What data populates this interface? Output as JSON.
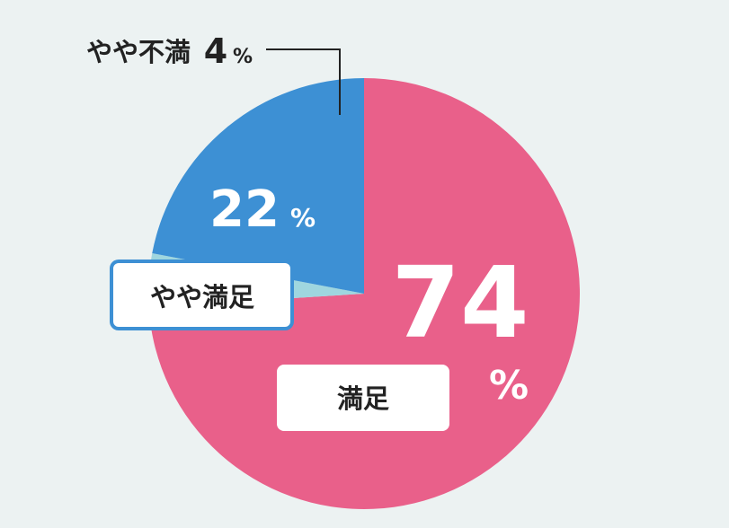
{
  "chart_data": {
    "type": "pie",
    "title": "",
    "slices": [
      {
        "label": "満足",
        "value": 74,
        "pct": "74",
        "unit": "%",
        "color": "#e9608a"
      },
      {
        "label": "やや不満",
        "value": 4,
        "pct": "4",
        "unit": "%",
        "color": "#9fd6df"
      },
      {
        "label": "やや満足",
        "value": 22,
        "pct": "22",
        "unit": "%",
        "color": "#3d90d4"
      }
    ],
    "start": "top",
    "direction": "clockwise",
    "legend": "none"
  },
  "colors": {
    "background": "#ecf2f2",
    "label_text": "#222222",
    "white": "#ffffff",
    "box_border_blue": "#3d90d4"
  }
}
